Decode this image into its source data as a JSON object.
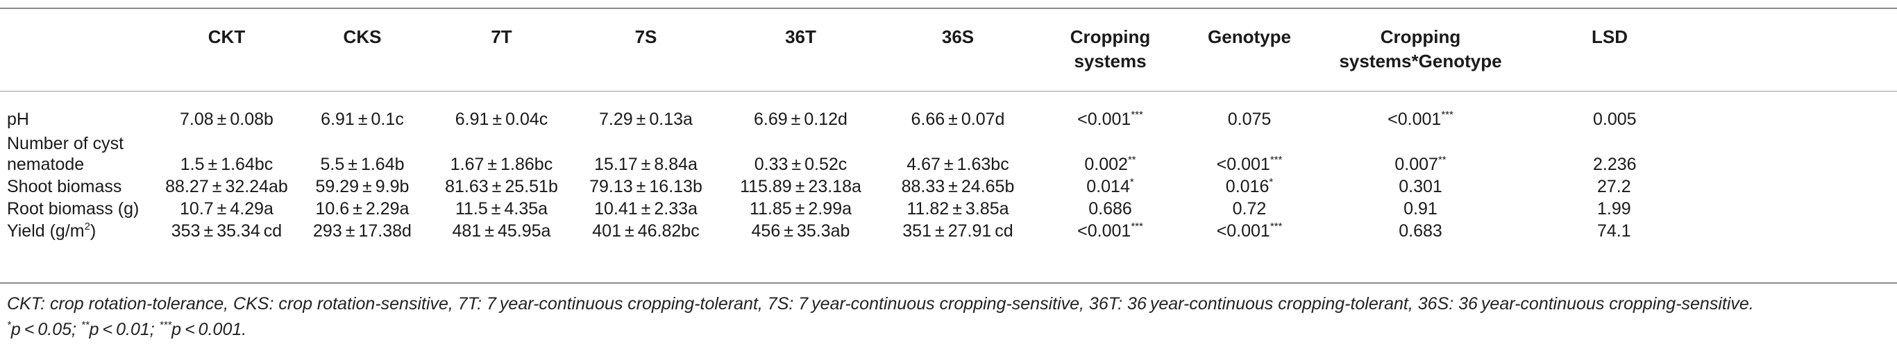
{
  "table": {
    "columns": [
      "CKT",
      "CKS",
      "7T",
      "7S",
      "36T",
      "36S",
      "Cropping\nsystems",
      "Genotype",
      "Cropping\nsystems*Genotype",
      "LSD"
    ],
    "rows": [
      {
        "label": "pH",
        "values": [
          "7.08 ± 0.08b",
          "6.91 ± 0.1c",
          "6.91 ± 0.04c",
          "7.29 ± 0.13a",
          "6.69 ± 0.12d",
          "6.66 ± 0.07d"
        ],
        "p": [
          {
            "v": "<0.001",
            "s": "***"
          },
          {
            "v": "0.075",
            "s": ""
          },
          {
            "v": "<0.001",
            "s": "***"
          }
        ],
        "lsd": "0.005"
      },
      {
        "label": "Number of cyst nematode",
        "values": [
          "1.5 ± 1.64bc",
          "5.5 ± 1.64b",
          "1.67 ± 1.86bc",
          "15.17 ± 8.84a",
          "0.33 ± 0.52c",
          "4.67 ± 1.63bc"
        ],
        "p": [
          {
            "v": "0.002",
            "s": "**"
          },
          {
            "v": "<0.001",
            "s": "***"
          },
          {
            "v": "0.007",
            "s": "**"
          }
        ],
        "lsd": "2.236"
      },
      {
        "label": "Shoot biomass",
        "values": [
          "88.27 ± 32.24ab",
          "59.29 ± 9.9b",
          "81.63 ± 25.51b",
          "79.13 ± 16.13b",
          "115.89 ± 23.18a",
          "88.33 ± 24.65b"
        ],
        "p": [
          {
            "v": "0.014",
            "s": "*"
          },
          {
            "v": "0.016",
            "s": "*"
          },
          {
            "v": "0.301",
            "s": ""
          }
        ],
        "lsd": "27.2"
      },
      {
        "label": "Root biomass (g)",
        "values": [
          "10.7 ± 4.29a",
          "10.6 ± 2.29a",
          "11.5 ± 4.35a",
          "10.41 ± 2.33a",
          "11.85 ± 2.99a",
          "11.82 ± 3.85a"
        ],
        "p": [
          {
            "v": "0.686",
            "s": ""
          },
          {
            "v": "0.72",
            "s": ""
          },
          {
            "v": "0.91",
            "s": ""
          }
        ],
        "lsd": "1.99"
      },
      {
        "label": "Yield (g/m",
        "label_sup": "2",
        "label_end": ")",
        "values": [
          "353 ± 35.34 cd",
          "293 ± 17.38d",
          "481 ± 45.95a",
          "401 ± 46.82bc",
          "456 ± 35.3ab",
          "351 ± 27.91 cd"
        ],
        "p": [
          {
            "v": "<0.001",
            "s": "***"
          },
          {
            "v": "<0.001",
            "s": "***"
          },
          {
            "v": "0.683",
            "s": ""
          }
        ],
        "lsd": "74.1"
      }
    ]
  },
  "footnote": {
    "line1": "CKT: crop rotation-tolerance, CKS: crop rotation-sensitive, 7T: 7 year-continuous cropping-tolerant, 7S: 7 year-continuous cropping-sensitive, 36T: 36 year-continuous cropping-tolerant, 36S: 36 year-continuous cropping-sensitive.",
    "sig": [
      {
        "mark": "*",
        "text": "p < 0.05; "
      },
      {
        "mark": "**",
        "text": "p < 0.01; "
      },
      {
        "mark": "***",
        "text": "p < 0.001."
      }
    ]
  }
}
